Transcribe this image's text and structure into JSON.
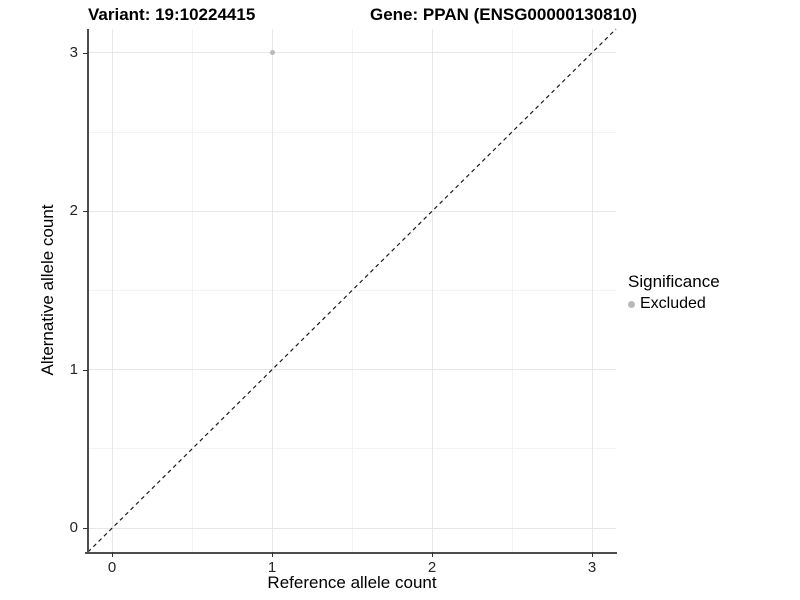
{
  "titles": {
    "variant": "Variant: 19:10224415",
    "gene": "Gene: PPAN (ENSG00000130810)"
  },
  "chart_data": {
    "type": "scatter",
    "title_left": "Variant: 19:10224415",
    "title_right": "Gene: PPAN (ENSG00000130810)",
    "xlabel": "Reference allele count",
    "ylabel": "Alternative allele count",
    "xticks": [
      0,
      1,
      2,
      3
    ],
    "yticks": [
      0,
      1,
      2,
      3
    ],
    "xlim": [
      -0.15,
      3.15
    ],
    "ylim": [
      -0.15,
      3.15
    ],
    "grid": "major+minor",
    "points": [
      {
        "x": 1,
        "y": 3,
        "series": "Excluded"
      }
    ],
    "reference_line": {
      "kind": "abline",
      "slope": 1,
      "intercept": 0,
      "style": "dashed"
    },
    "legend": {
      "title": "Significance",
      "position": "right",
      "entries": [
        {
          "label": "Excluded",
          "color": "#b9b9b9"
        }
      ]
    },
    "colors": {
      "point": "#b9b9b9",
      "grid_major": "#e7e7e7",
      "grid_minor": "#f3f3f3",
      "axis_line": "#4d4d4d",
      "reference_line": "#1a1a1a",
      "tick_text": "#262626",
      "title_text": "#000000"
    }
  }
}
